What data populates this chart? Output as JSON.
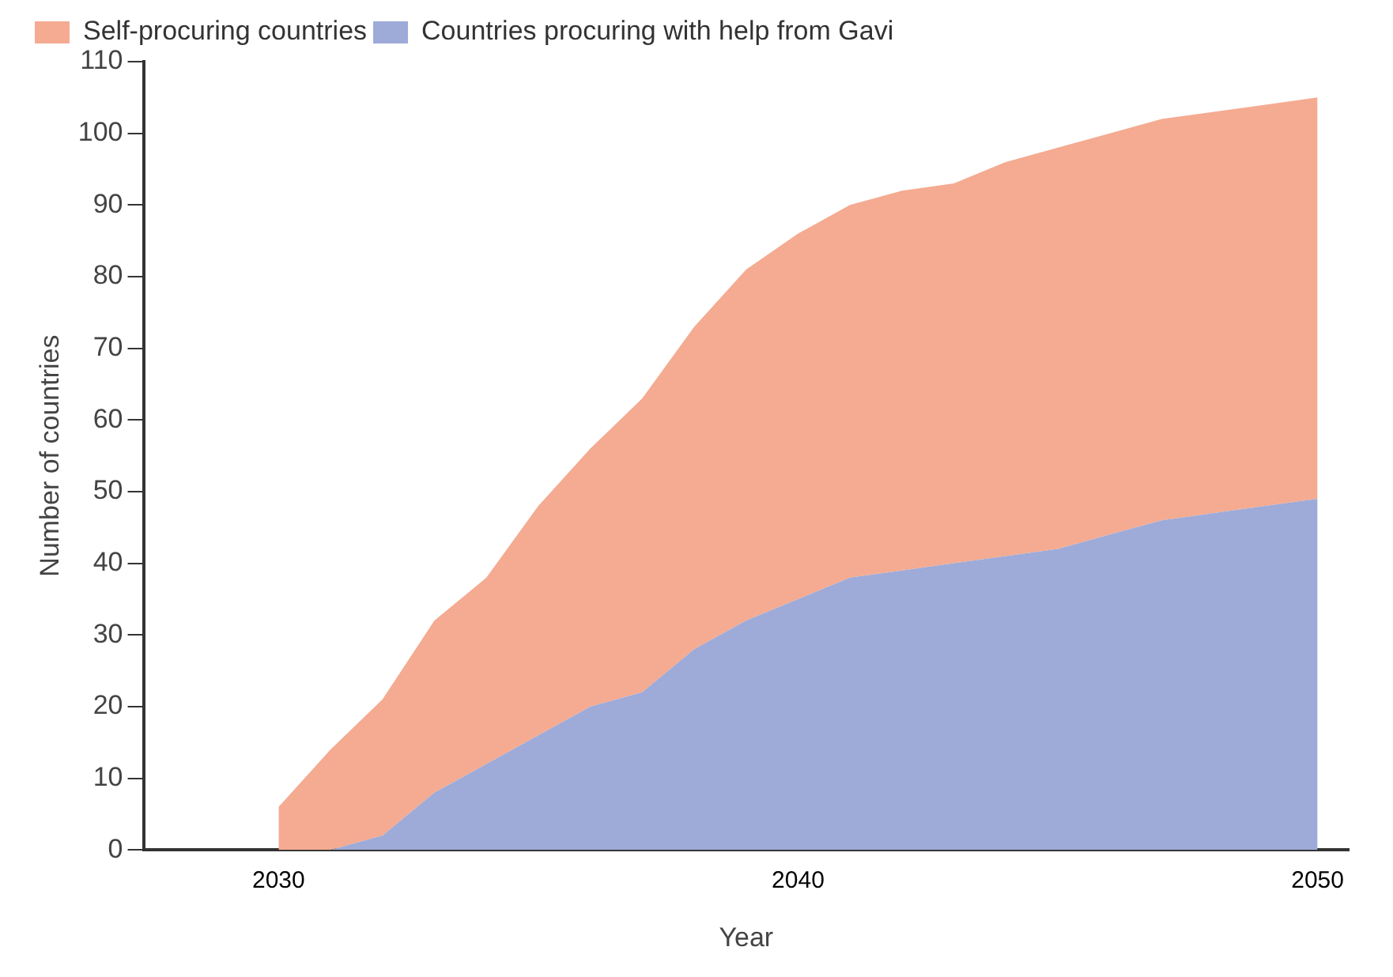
{
  "chart_data": {
    "type": "area",
    "stacked": true,
    "xlabel": "Year",
    "ylabel": "Number of countries",
    "x": [
      2030,
      2031,
      2032,
      2033,
      2034,
      2035,
      2036,
      2037,
      2038,
      2039,
      2040,
      2041,
      2042,
      2043,
      2044,
      2045,
      2046,
      2047,
      2048,
      2049,
      2050
    ],
    "series": [
      {
        "name": "Countries procuring with help from Gavi",
        "color": "#9eaad8",
        "values": [
          0,
          0,
          2,
          8,
          12,
          16,
          20,
          22,
          28,
          32,
          35,
          38,
          39,
          40,
          41,
          42,
          44,
          46,
          47,
          48,
          49
        ]
      },
      {
        "name": "Self-procuring countries",
        "color": "#f4ab91",
        "values": [
          6,
          14,
          19,
          24,
          26,
          32,
          36,
          41,
          45,
          49,
          51,
          52,
          53,
          53,
          55,
          56,
          56,
          56,
          56,
          56,
          56
        ]
      }
    ],
    "xlim": [
      2027.4,
      2050.6
    ],
    "xticks": [
      2030,
      2040,
      2050
    ],
    "ylim": [
      0,
      110
    ],
    "yticks": [
      0,
      10,
      20,
      30,
      40,
      50,
      60,
      70,
      80,
      90,
      100,
      110
    ],
    "grid": false,
    "legend": "top left",
    "marker": "none"
  }
}
